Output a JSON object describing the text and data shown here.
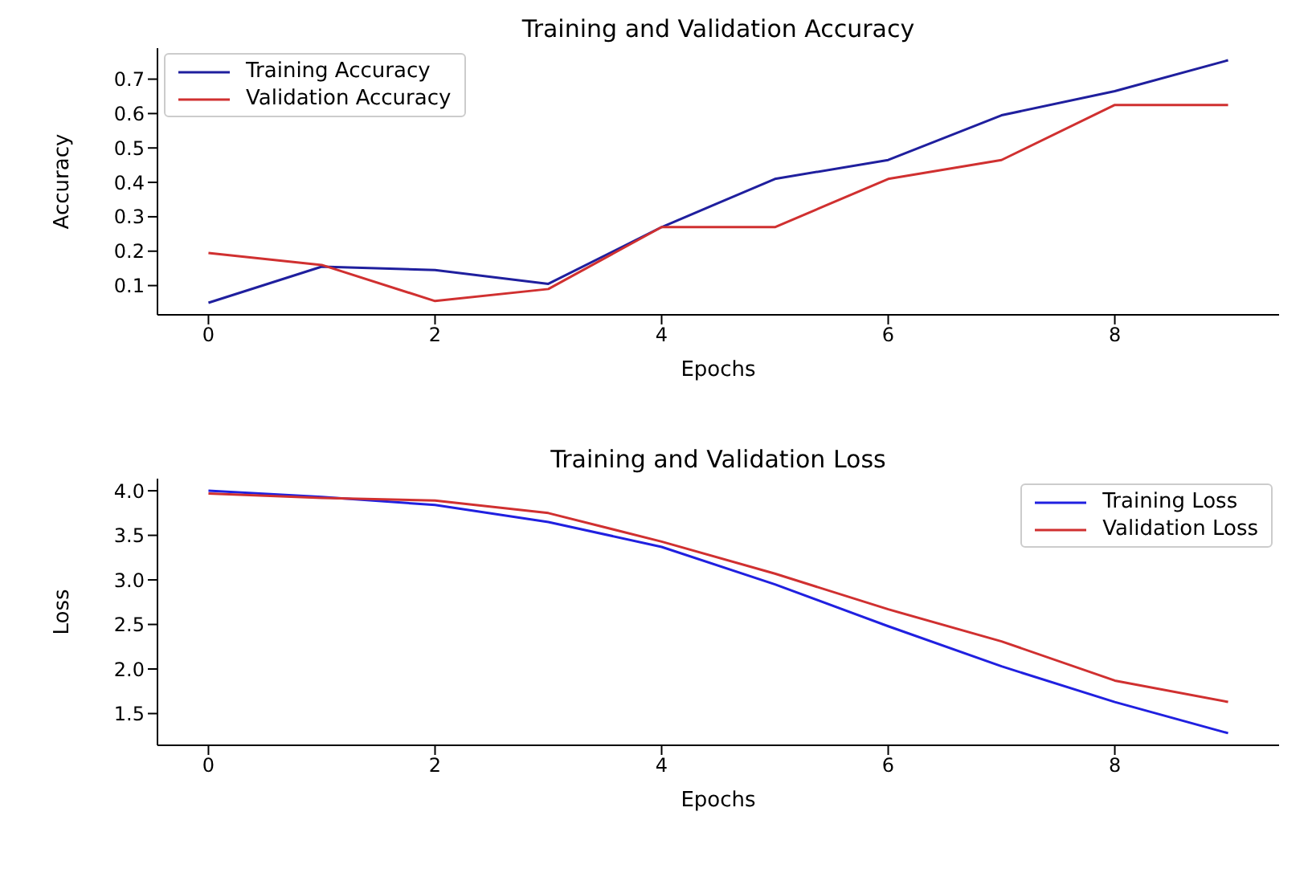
{
  "chart_data": [
    {
      "type": "line",
      "title": "Training and Validation Accuracy",
      "xlabel": "Epochs",
      "ylabel": "Accuracy",
      "x": [
        0,
        1,
        2,
        3,
        4,
        5,
        6,
        7,
        8,
        9
      ],
      "xlim": [
        -0.45,
        9.45
      ],
      "xticks": [
        0,
        2,
        4,
        6,
        8
      ],
      "ylim": [
        0.015,
        0.79
      ],
      "yticks": [
        0.1,
        0.2,
        0.3,
        0.4,
        0.5,
        0.6,
        0.7
      ],
      "legend": "top left",
      "grid": false,
      "series": [
        {
          "name": "Training Accuracy",
          "color": "#1f1f9e",
          "values": [
            0.05,
            0.155,
            0.145,
            0.105,
            0.27,
            0.41,
            0.465,
            0.595,
            0.665,
            0.755
          ]
        },
        {
          "name": "Validation Accuracy",
          "color": "#d03030",
          "values": [
            0.195,
            0.16,
            0.055,
            0.09,
            0.27,
            0.27,
            0.41,
            0.465,
            0.625,
            0.625
          ]
        }
      ]
    },
    {
      "type": "line",
      "title": "Training and Validation Loss",
      "xlabel": "Epochs",
      "ylabel": "Loss",
      "x": [
        0,
        1,
        2,
        3,
        4,
        5,
        6,
        7,
        8,
        9
      ],
      "xlim": [
        -0.45,
        9.45
      ],
      "xticks": [
        0,
        2,
        4,
        6,
        8
      ],
      "ylim": [
        1.144,
        4.136
      ],
      "yticks": [
        1.5,
        {
          "value": 2,
          "label": "2.0"
        },
        2.5,
        {
          "value": 3,
          "label": "3.0"
        },
        3.5,
        {
          "value": 4,
          "label": "4.0"
        }
      ],
      "legend": "top right",
      "grid": false,
      "series": [
        {
          "name": "Training Loss",
          "color": "#2020e0",
          "values": [
            4.0,
            3.93,
            3.84,
            3.65,
            3.37,
            2.95,
            2.48,
            2.03,
            1.63,
            1.28
          ]
        },
        {
          "name": "Validation Loss",
          "color": "#d03030",
          "values": [
            3.97,
            3.92,
            3.89,
            3.75,
            3.43,
            3.07,
            2.67,
            2.31,
            1.87,
            1.63
          ]
        }
      ]
    }
  ]
}
